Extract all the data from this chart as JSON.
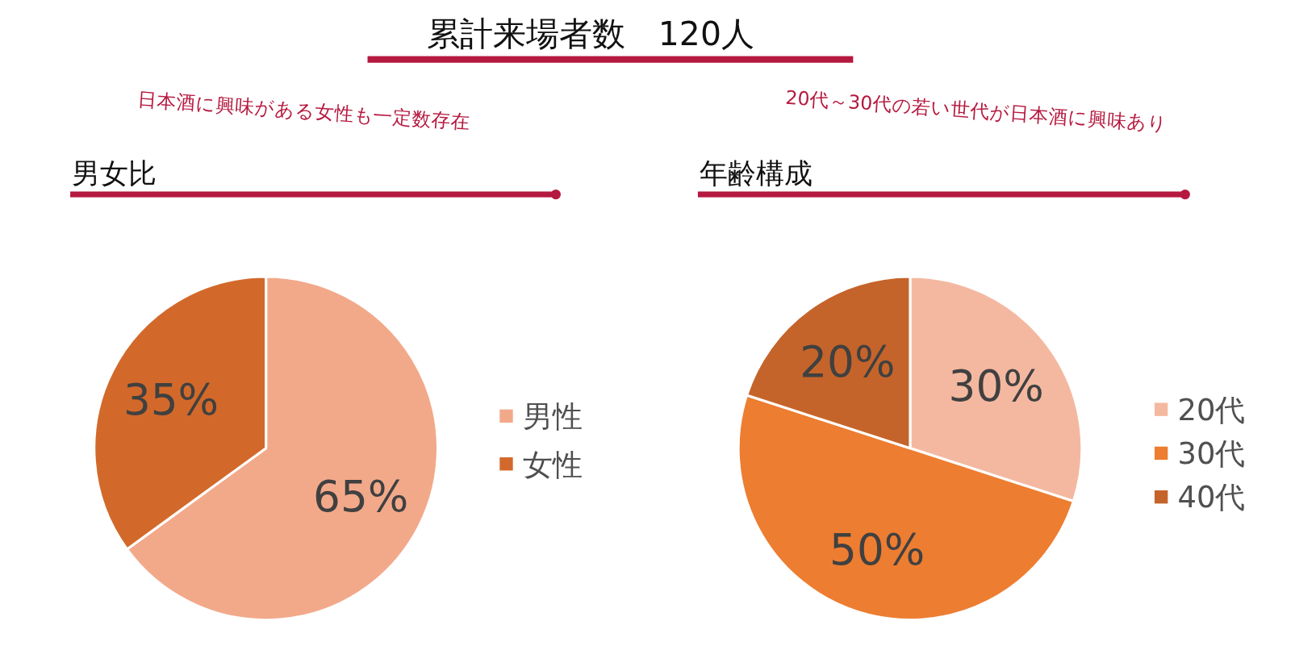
{
  "chart_data": [
    {
      "type": "other",
      "title": "累計来場者数　120人"
    },
    {
      "type": "pie",
      "title": "男女比",
      "annotations": [
        "日本酒に興味がある女性も一定数存在"
      ],
      "categories": [
        "男性",
        "女性"
      ],
      "values": [
        65,
        35
      ],
      "value_labels": [
        "65%",
        "35%"
      ],
      "colors": [
        "#f2a98a",
        "#d2692a"
      ],
      "legend": "right"
    },
    {
      "type": "pie",
      "title": "年齢構成",
      "annotations": [
        "20代～30代の若い世代が日本酒に興味あり"
      ],
      "categories": [
        "20代",
        "30代",
        "40代"
      ],
      "values": [
        30,
        50,
        20
      ],
      "value_labels": [
        "30%",
        "50%",
        "20%"
      ],
      "colors": [
        "#f4b8a0",
        "#ed7d31",
        "#c5642a"
      ],
      "legend": "right"
    }
  ]
}
